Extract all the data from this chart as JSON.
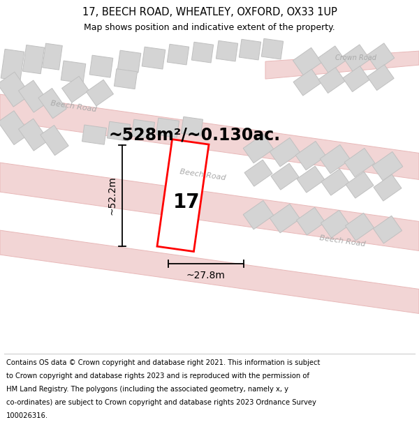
{
  "title": "17, BEECH ROAD, WHEATLEY, OXFORD, OX33 1UP",
  "subtitle": "Map shows position and indicative extent of the property.",
  "footer_lines": [
    "Contains OS data © Crown copyright and database right 2021. This information is subject",
    "to Crown copyright and database rights 2023 and is reproduced with the permission of",
    "HM Land Registry. The polygons (including the associated geometry, namely x, y",
    "co-ordinates) are subject to Crown copyright and database rights 2023 Ordnance Survey",
    "100026316."
  ],
  "area_text": "~528m²/~0.130ac.",
  "dim_height": "~52.2m",
  "dim_width": "~27.8m",
  "number_label": "17",
  "road_fill": "#f2d5d5",
  "road_edge": "#e8b8b8",
  "building_fill": "#d4d4d4",
  "building_edge": "#c0c0c0",
  "plot_edge": "#ff0000",
  "plot_fill": "#ffffff",
  "map_bg": "#f8f6f6",
  "title_fontsize": 10.5,
  "subtitle_fontsize": 9,
  "footer_fontsize": 7.2,
  "area_fontsize": 17,
  "dim_fontsize": 10,
  "num_fontsize": 20
}
